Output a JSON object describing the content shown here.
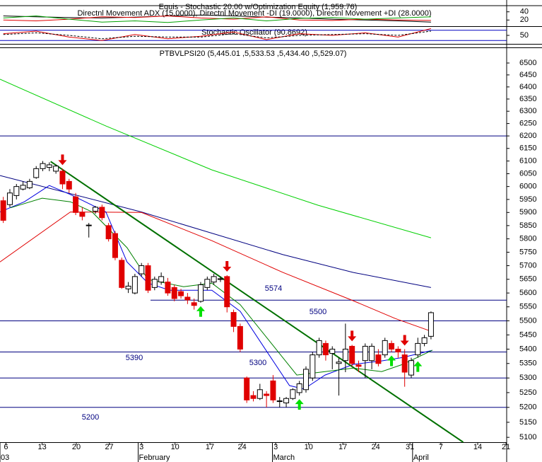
{
  "chart_data": [
    {
      "type": "line",
      "title": "Equis - Stochastic 20.00 w/Optimization Equity (1,959.76)",
      "subtitle": "Directnl Movement ADX (15.0000), Directnl Movement -DI (19.0000), Directnl Movement +DI (28.0000)",
      "x": [
        0,
        5,
        10,
        15,
        20,
        25,
        30,
        35,
        40,
        45,
        50,
        55,
        60,
        65
      ],
      "series": [
        {
          "color": "#000000",
          "values": [
            30,
            28,
            26,
            25,
            27,
            30,
            32,
            30,
            27,
            25,
            22,
            20,
            18,
            15
          ]
        },
        {
          "color": "#e00000",
          "values": [
            20,
            18,
            22,
            28,
            26,
            30,
            25,
            22,
            28,
            20,
            19,
            22,
            20,
            19
          ]
        },
        {
          "color": "#00a000",
          "values": [
            25,
            30,
            22,
            15,
            18,
            14,
            20,
            25,
            18,
            24,
            26,
            22,
            25,
            28
          ]
        }
      ],
      "xlim": [
        -0.5,
        76.5
      ],
      "ylim": [
        5,
        55
      ],
      "yticks": [
        40,
        20
      ]
    },
    {
      "type": "line",
      "title": "Stochastic Oscillator (90.8692)",
      "x": [
        0,
        5,
        10,
        15,
        20,
        25,
        30,
        35,
        40,
        45,
        50,
        55,
        60,
        65
      ],
      "series": [
        {
          "color": "#e00000",
          "values": [
            60,
            75,
            40,
            20,
            55,
            30,
            45,
            70,
            25,
            60,
            50,
            65,
            40,
            90
          ]
        },
        {
          "color": "#000000",
          "dash": true,
          "values": [
            55,
            65,
            50,
            30,
            45,
            40,
            40,
            60,
            35,
            50,
            55,
            60,
            50,
            75
          ]
        }
      ],
      "xlim": [
        -0.5,
        76.5
      ],
      "ylim": [
        0,
        100
      ],
      "yticks": [
        50
      ],
      "hlines": [
        80,
        20
      ],
      "hline_color": "#0000c0"
    },
    {
      "type": "candlestick",
      "title": "PTBVLPSI20 (5,445.01 ,5,533.53 ,5,434.40 ,5,529.07)",
      "open": [
        5945,
        5930,
        5965,
        5990,
        5995,
        6035,
        6070,
        6075,
        6060,
        6060,
        6020,
        5960,
        5900,
        5850,
        5905,
        5920,
        5850,
        5820,
        5720,
        5615,
        5600,
        5670,
        5700,
        5620,
        5640,
        5640,
        5620,
        5605,
        5585,
        5565,
        5570,
        5620,
        5640,
        5650,
        5660,
        5530,
        5480,
        5300,
        5240,
        5230,
        5245,
        5290,
        5220,
        5215,
        5230,
        5250,
        5260,
        5300,
        5380,
        5420,
        5385,
        5350,
        5360,
        5410,
        5345,
        5360,
        5360,
        5380,
        5380,
        5420,
        5400,
        5380,
        5310,
        5380,
        5420,
        5445.01
      ],
      "high": [
        5960,
        5990,
        6010,
        6020,
        6030,
        6080,
        6100,
        6095,
        6085,
        6070,
        6030,
        5975,
        5920,
        5860,
        5925,
        5930,
        5860,
        5830,
        5730,
        5640,
        5670,
        5710,
        5710,
        5660,
        5675,
        5655,
        5630,
        5615,
        5600,
        5580,
        5640,
        5660,
        5670,
        5660,
        5665,
        5540,
        5490,
        5305,
        5255,
        5280,
        5255,
        5310,
        5235,
        5235,
        5265,
        5290,
        5340,
        5390,
        5440,
        5430,
        5410,
        5370,
        5490,
        5415,
        5360,
        5420,
        5420,
        5400,
        5440,
        5430,
        5410,
        5400,
        5370,
        5440,
        5450,
        5533.53
      ],
      "low": [
        5860,
        5920,
        5950,
        5985,
        5990,
        6030,
        6060,
        6060,
        6050,
        5990,
        5975,
        5890,
        5870,
        5805,
        5895,
        5870,
        5790,
        5720,
        5615,
        5600,
        5595,
        5660,
        5600,
        5610,
        5630,
        5590,
        5570,
        5580,
        5560,
        5540,
        5565,
        5610,
        5630,
        5640,
        5530,
        5460,
        5390,
        5215,
        5220,
        5225,
        5200,
        5215,
        5200,
        5200,
        5225,
        5240,
        5250,
        5290,
        5370,
        5360,
        5330,
        5240,
        5320,
        5340,
        5320,
        5300,
        5330,
        5340,
        5370,
        5390,
        5370,
        5270,
        5300,
        5370,
        5410,
        5434.4
      ],
      "close": [
        5870,
        5975,
        6000,
        6005,
        6020,
        6070,
        6090,
        6085,
        6080,
        6010,
        5990,
        5900,
        5885,
        5852,
        5920,
        5880,
        5800,
        5730,
        5620,
        5625,
        5660,
        5700,
        5610,
        5650,
        5660,
        5600,
        5580,
        5590,
        5575,
        5555,
        5630,
        5650,
        5660,
        5652,
        5550,
        5480,
        5400,
        5225,
        5230,
        5260,
        5240,
        5225,
        5222,
        5230,
        5260,
        5280,
        5330,
        5380,
        5430,
        5380,
        5400,
        5355,
        5400,
        5350,
        5340,
        5410,
        5410,
        5350,
        5430,
        5400,
        5390,
        5320,
        5360,
        5420,
        5440,
        5529.07
      ],
      "up_color": "#ffffff",
      "down_color": "#e00000",
      "log_scale": true,
      "xlim": [
        -0.5,
        76.5
      ],
      "ylim": [
        5084,
        6563
      ],
      "yticks": [
        6500,
        6450,
        6400,
        6350,
        6300,
        6250,
        6200,
        6150,
        6100,
        6050,
        6000,
        5950,
        5900,
        5850,
        5800,
        5750,
        5700,
        5650,
        5600,
        5550,
        5500,
        5450,
        5400,
        5350,
        5300,
        5250,
        5200,
        5150,
        5100
      ],
      "xticks": [
        {
          "value": 0.4,
          "label": "6"
        },
        {
          "value": 5.9,
          "label": "13"
        },
        {
          "value": 11.1,
          "label": "20"
        },
        {
          "value": 16.1,
          "label": "27"
        },
        {
          "value": 21,
          "label": "3"
        },
        {
          "value": 26.1,
          "label": "10"
        },
        {
          "value": 31.4,
          "label": "17"
        },
        {
          "value": 36.3,
          "label": "24"
        },
        {
          "value": 41.4,
          "label": "3"
        },
        {
          "value": 46.4,
          "label": "10"
        },
        {
          "value": 51.6,
          "label": "17"
        },
        {
          "value": 56.6,
          "label": "24"
        },
        {
          "value": 61.8,
          "label": "31"
        },
        {
          "value": 66.5,
          "label": "7"
        },
        {
          "value": 72.1,
          "label": "14"
        },
        {
          "value": 76.4,
          "label": "21"
        }
      ],
      "months": [
        {
          "value": -0.5,
          "label": "03"
        },
        {
          "value": 20.5,
          "label": "February"
        },
        {
          "value": 40.9,
          "label": "March"
        },
        {
          "value": 62.2,
          "label": "April"
        }
      ],
      "lines": [
        {
          "color": "#00d000",
          "x": [
            -0.5,
            15.6,
            31.7,
            47.8,
            65
          ],
          "values": [
            6432,
            6240,
            6065,
            5928,
            5804
          ]
        },
        {
          "color": "#000080",
          "x": [
            -0.5,
            21,
            42.5,
            53.2,
            65
          ],
          "values": [
            6043,
            5902,
            5741,
            5675,
            5620
          ]
        },
        {
          "color": "#e00000",
          "x": [
            -0.5,
            10.2,
            21,
            31.7,
            42.5,
            53.2,
            59.6,
            65
          ],
          "values": [
            5714,
            5902,
            5900,
            5793,
            5675,
            5572,
            5508,
            5463
          ]
        },
        {
          "color": "#0000e0",
          "x": [
            -0.5,
            3.2,
            7,
            10.2,
            15.6,
            18.8,
            22,
            25.3,
            31.7,
            36,
            40.3,
            43.5,
            45.7,
            48.9,
            53.2,
            57.5,
            60.7,
            65.2
          ],
          "values": [
            5902,
            5941,
            6004,
            5969,
            5902,
            5714,
            5636,
            5610,
            5610,
            5534,
            5383,
            5274,
            5262,
            5310,
            5347,
            5359,
            5371,
            5396
          ]
        },
        {
          "color": "#008000",
          "x": [
            1.1,
            5.9,
            10.2,
            13.5,
            18.8,
            22,
            27.4,
            31.7,
            36,
            40.3,
            44.6,
            48.9,
            53.2,
            57.5,
            60.7,
            65.2
          ],
          "values": [
            5918,
            5955,
            5941,
            5902,
            5767,
            5649,
            5623,
            5636,
            5558,
            5433,
            5310,
            5322,
            5334,
            5322,
            5347,
            5396
          ]
        },
        {
          "color": "#007000",
          "width": 2,
          "x": [
            7.2,
            69.9
          ],
          "values": [
            6098,
            5084
          ]
        }
      ],
      "hlines": [
        6200
      ],
      "levels": [
        5574,
        5500,
        5390,
        5300,
        5200
      ],
      "level_color": "#000080",
      "buy_signals": [
        30,
        45,
        59,
        63
      ],
      "sell_signals": [
        9,
        34,
        53,
        61
      ]
    }
  ]
}
